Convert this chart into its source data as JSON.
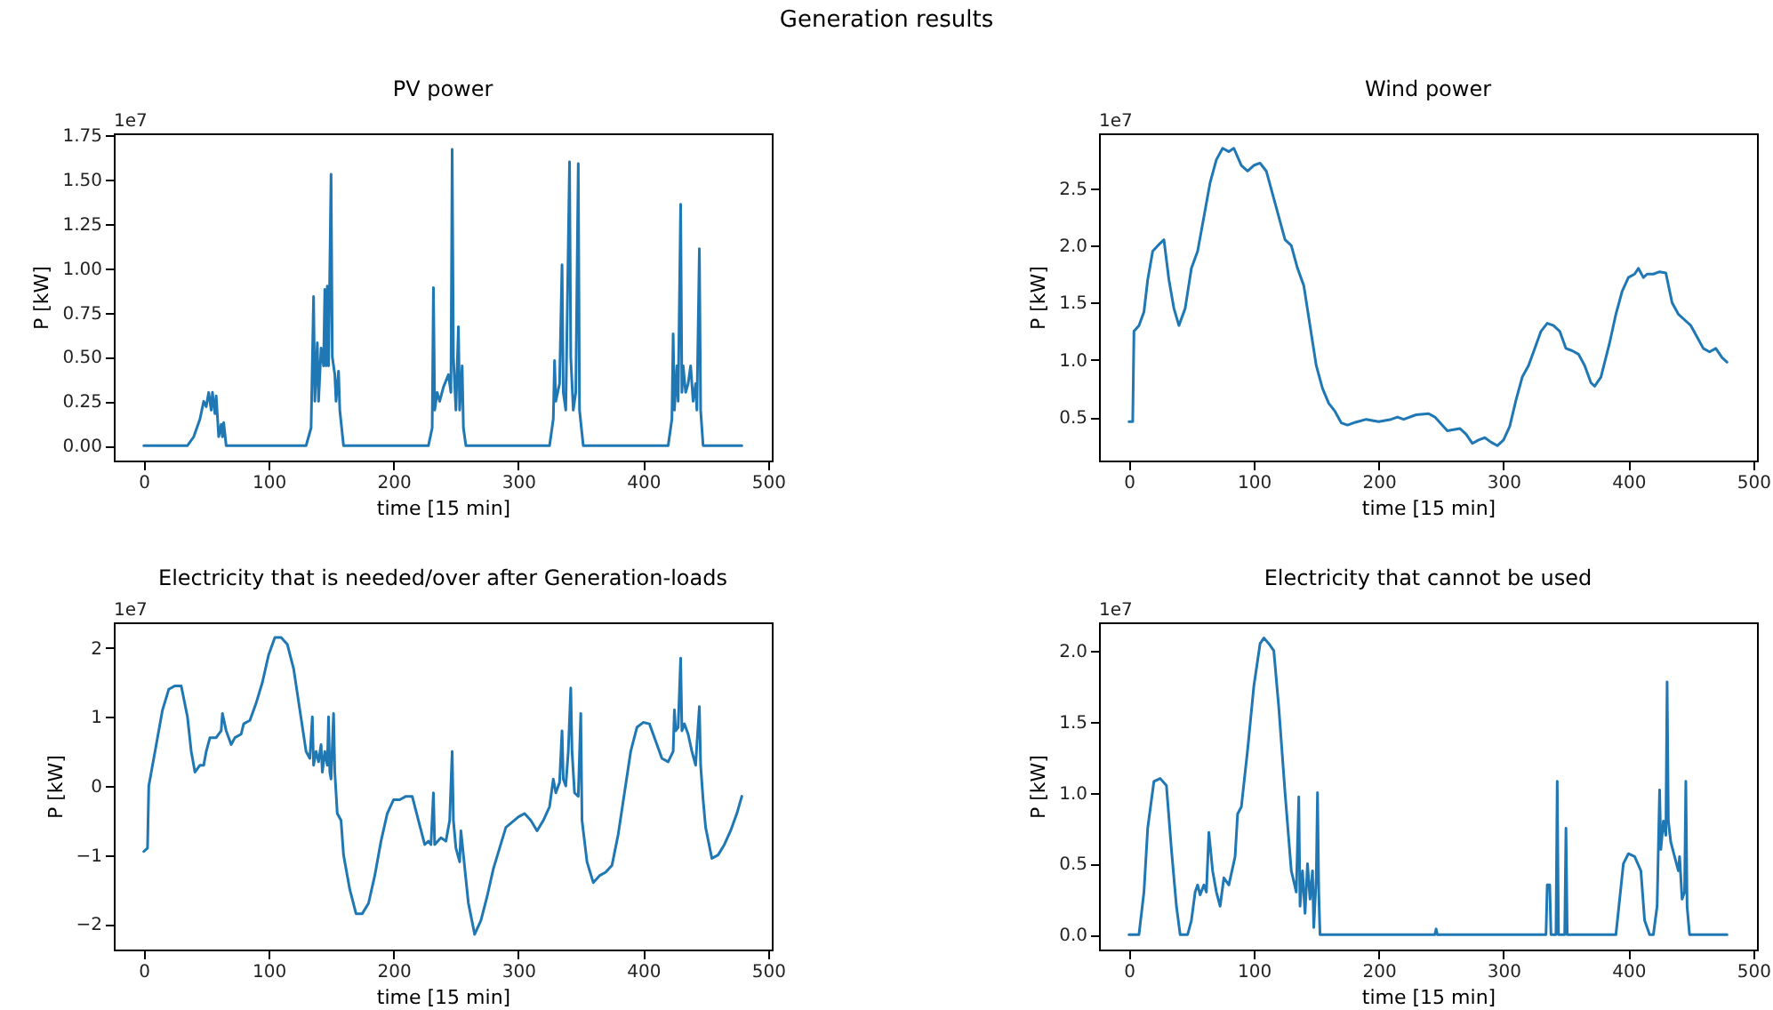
{
  "chart_data": [
    {
      "type": "other",
      "title": "Generation results"
    },
    {
      "type": "line",
      "title": "PV power",
      "xlabel": "time [15 min]",
      "ylabel": "P [kW]",
      "annotations": [
        "1e7"
      ],
      "grid": false,
      "marker": "none",
      "line_style": "solid",
      "xlim": [
        -24,
        503
      ],
      "xticks": [
        0,
        100,
        200,
        300,
        400,
        500
      ],
      "ylim": [
        -0.084,
        1.76
      ],
      "yticks": [
        {
          "value": 0,
          "label": "0.00"
        },
        0.25,
        {
          "value": 0.5,
          "label": "0.50"
        },
        0.75,
        {
          "value": 1,
          "label": "1.00"
        },
        1.25,
        {
          "value": 1.5,
          "label": "1.50"
        },
        1.75
      ],
      "x": [
        0,
        35,
        40,
        45,
        48,
        50,
        52,
        54,
        55,
        57,
        58,
        60,
        62,
        63,
        64,
        66,
        130,
        134,
        136,
        137,
        139,
        140,
        142,
        144,
        145,
        146,
        147,
        148,
        150,
        151,
        153,
        154,
        156,
        157,
        160,
        228,
        231,
        232,
        233,
        235,
        237,
        240,
        244,
        246,
        247,
        248,
        250,
        252,
        253,
        255,
        256,
        258,
        325,
        328,
        329,
        330,
        333,
        335,
        336,
        338,
        341,
        342,
        344,
        346,
        348,
        349,
        352,
        420,
        423,
        424,
        425,
        427,
        428,
        430,
        431,
        432,
        434,
        436,
        438,
        440,
        442,
        443,
        445,
        446,
        448,
        479
      ],
      "series": [
        {
          "color": "#1f77b4",
          "values": [
            0,
            0,
            0.05,
            0.15,
            0.25,
            0.22,
            0.3,
            0.2,
            0.3,
            0.18,
            0.28,
            0.05,
            0.12,
            0.05,
            0.13,
            0,
            0,
            0.1,
            0.84,
            0.25,
            0.58,
            0.25,
            0.55,
            0.45,
            0.88,
            0.45,
            0.9,
            0.45,
            1.53,
            0.5,
            0.4,
            0.25,
            0.42,
            0.2,
            0,
            0,
            0.1,
            0.89,
            0.2,
            0.3,
            0.25,
            0.33,
            0.4,
            0.3,
            1.67,
            0.5,
            0.2,
            0.67,
            0.2,
            0.45,
            0.1,
            0,
            0,
            0.15,
            0.48,
            0.25,
            0.35,
            1.02,
            0.3,
            0.2,
            1.6,
            0.5,
            0.2,
            0.3,
            1.59,
            0.2,
            0,
            0,
            0.15,
            0.63,
            0.2,
            0.45,
            0.25,
            1.36,
            0.3,
            0.45,
            0.3,
            0.35,
            0.45,
            0.25,
            0.35,
            0.2,
            1.11,
            0.2,
            0,
            0
          ]
        }
      ]
    },
    {
      "type": "line",
      "title": "Wind power",
      "xlabel": "time [15 min]",
      "ylabel": "P [kW]",
      "annotations": [
        "1e7"
      ],
      "grid": false,
      "marker": "none",
      "line_style": "solid",
      "xlim": [
        -24,
        503
      ],
      "xticks": [
        0,
        100,
        200,
        300,
        400,
        500
      ],
      "ylim": [
        0.12,
        2.98
      ],
      "yticks": [
        0.5,
        {
          "value": 1,
          "label": "1.0"
        },
        1.5,
        {
          "value": 2,
          "label": "2.0"
        },
        2.5
      ],
      "x": [
        0,
        3,
        4,
        8,
        12,
        15,
        19,
        25,
        28,
        32,
        36,
        40,
        45,
        50,
        55,
        60,
        65,
        70,
        75,
        80,
        84,
        90,
        95,
        100,
        105,
        110,
        115,
        120,
        125,
        130,
        135,
        140,
        145,
        150,
        155,
        160,
        165,
        170,
        175,
        180,
        190,
        200,
        210,
        215,
        220,
        230,
        240,
        245,
        255,
        265,
        270,
        275,
        280,
        285,
        290,
        295,
        300,
        305,
        310,
        315,
        320,
        325,
        330,
        335,
        340,
        345,
        350,
        355,
        360,
        365,
        370,
        373,
        378,
        385,
        390,
        395,
        400,
        405,
        408,
        412,
        415,
        420,
        425,
        430,
        435,
        440,
        445,
        450,
        455,
        460,
        465,
        470,
        475,
        479
      ],
      "series": [
        {
          "color": "#1f77b4",
          "values": [
            0.46,
            0.46,
            1.25,
            1.3,
            1.42,
            1.7,
            1.95,
            2.02,
            2.05,
            1.7,
            1.45,
            1.3,
            1.45,
            1.8,
            1.95,
            2.25,
            2.55,
            2.75,
            2.85,
            2.82,
            2.85,
            2.7,
            2.65,
            2.7,
            2.72,
            2.65,
            2.45,
            2.25,
            2.05,
            2.0,
            1.8,
            1.65,
            1.3,
            0.95,
            0.75,
            0.62,
            0.55,
            0.45,
            0.43,
            0.45,
            0.48,
            0.46,
            0.48,
            0.5,
            0.48,
            0.52,
            0.53,
            0.5,
            0.38,
            0.4,
            0.35,
            0.27,
            0.3,
            0.32,
            0.28,
            0.25,
            0.3,
            0.42,
            0.65,
            0.85,
            0.95,
            1.1,
            1.25,
            1.32,
            1.3,
            1.25,
            1.1,
            1.08,
            1.05,
            0.95,
            0.8,
            0.77,
            0.85,
            1.15,
            1.4,
            1.6,
            1.72,
            1.75,
            1.8,
            1.72,
            1.75,
            1.75,
            1.77,
            1.76,
            1.5,
            1.4,
            1.35,
            1.3,
            1.2,
            1.1,
            1.07,
            1.1,
            1.02,
            0.98
          ]
        }
      ]
    },
    {
      "type": "line",
      "title": "Electricity that is needed/over after Generation-loads",
      "xlabel": "time [15 min]",
      "ylabel": "P [kW]",
      "annotations": [
        "1e7"
      ],
      "grid": false,
      "marker": "none",
      "line_style": "solid",
      "xlim": [
        -24,
        503
      ],
      "xticks": [
        0,
        100,
        200,
        300,
        400,
        500
      ],
      "ylim": [
        -2.37,
        2.37
      ],
      "yticks": [
        {
          "value": -2,
          "label": "−2"
        },
        {
          "value": -1,
          "label": "−1"
        },
        0,
        1,
        2
      ],
      "x": [
        0,
        3,
        4,
        6,
        10,
        15,
        20,
        25,
        30,
        35,
        38,
        41,
        45,
        48,
        50,
        53,
        58,
        62,
        63,
        66,
        70,
        73,
        78,
        80,
        85,
        90,
        95,
        100,
        105,
        110,
        115,
        120,
        125,
        130,
        133,
        135,
        136,
        138,
        140,
        142,
        143,
        145,
        147,
        148,
        149,
        150,
        152,
        153,
        155,
        158,
        160,
        165,
        170,
        175,
        180,
        185,
        190,
        195,
        200,
        205,
        210,
        215,
        220,
        225,
        228,
        230,
        232,
        233,
        238,
        242,
        245,
        247,
        248,
        250,
        253,
        254,
        256,
        260,
        265,
        270,
        275,
        280,
        285,
        290,
        300,
        305,
        310,
        315,
        320,
        325,
        328,
        330,
        333,
        335,
        336,
        338,
        340,
        342,
        343,
        345,
        348,
        350,
        351,
        355,
        360,
        365,
        370,
        375,
        380,
        385,
        390,
        395,
        400,
        405,
        410,
        415,
        420,
        424,
        425,
        426,
        428,
        430,
        431,
        433,
        436,
        439,
        442,
        443,
        445,
        446,
        448,
        450,
        455,
        460,
        465,
        470,
        475,
        479
      ],
      "series": [
        {
          "color": "#1f77b4",
          "values": [
            -0.95,
            -0.9,
            0,
            0.2,
            0.6,
            1.1,
            1.4,
            1.45,
            1.45,
            1.0,
            0.5,
            0.2,
            0.3,
            0.3,
            0.5,
            0.7,
            0.7,
            0.8,
            1.05,
            0.8,
            0.6,
            0.7,
            0.75,
            0.9,
            0.95,
            1.2,
            1.5,
            1.9,
            2.15,
            2.15,
            2.05,
            1.7,
            1.1,
            0.5,
            0.4,
            1.0,
            0.3,
            0.5,
            0.35,
            0.6,
            0.2,
            0.5,
            0.3,
            1.0,
            0.2,
            0.1,
            1.05,
            0.2,
            -0.4,
            -0.5,
            -1.0,
            -1.5,
            -1.85,
            -1.85,
            -1.7,
            -1.3,
            -0.8,
            -0.4,
            -0.2,
            -0.2,
            -0.15,
            -0.15,
            -0.5,
            -0.85,
            -0.8,
            -0.85,
            -0.1,
            -0.85,
            -0.75,
            -0.8,
            -0.5,
            0.5,
            -0.5,
            -0.9,
            -1.1,
            -0.65,
            -1.0,
            -1.7,
            -2.15,
            -1.95,
            -1.6,
            -1.2,
            -0.9,
            -0.6,
            -0.45,
            -0.4,
            -0.5,
            -0.65,
            -0.5,
            -0.3,
            0.1,
            -0.1,
            0.05,
            0.8,
            0.1,
            0,
            0.5,
            1.42,
            0.5,
            -0.1,
            -0.15,
            1.05,
            -0.5,
            -1.1,
            -1.4,
            -1.3,
            -1.25,
            -1.15,
            -0.7,
            -0.1,
            0.5,
            0.85,
            0.92,
            0.9,
            0.65,
            0.4,
            0.35,
            0.5,
            1.1,
            0.8,
            0.85,
            1.85,
            0.8,
            0.9,
            0.75,
            0.5,
            0.3,
            0.6,
            1.15,
            0.3,
            -0.2,
            -0.6,
            -1.05,
            -1.0,
            -0.85,
            -0.65,
            -0.4,
            -0.15
          ]
        }
      ]
    },
    {
      "type": "line",
      "title": "Electricity that cannot be used",
      "xlabel": "time [15 min]",
      "ylabel": "P [kW]",
      "annotations": [
        "1e7"
      ],
      "grid": false,
      "marker": "none",
      "line_style": "solid",
      "xlim": [
        -24,
        503
      ],
      "xticks": [
        0,
        100,
        200,
        300,
        400,
        500
      ],
      "ylim": [
        -0.105,
        2.2
      ],
      "yticks": [
        {
          "value": 0,
          "label": "0.0"
        },
        0.5,
        {
          "value": 1,
          "label": "1.0"
        },
        1.5,
        {
          "value": 2,
          "label": "2.0"
        }
      ],
      "x": [
        0,
        8,
        12,
        15,
        20,
        25,
        30,
        34,
        38,
        41,
        47,
        50,
        53,
        55,
        57,
        60,
        62,
        64,
        67,
        70,
        73,
        76,
        80,
        85,
        87,
        90,
        95,
        100,
        105,
        108,
        112,
        116,
        120,
        125,
        130,
        134,
        136,
        137,
        139,
        141,
        143,
        145,
        147,
        148,
        150,
        151,
        152,
        153,
        245,
        246,
        247,
        334,
        335,
        337,
        338,
        342,
        343,
        344,
        349,
        350,
        351,
        390,
        393,
        396,
        400,
        405,
        410,
        413,
        417,
        420,
        423,
        425,
        426,
        428,
        430,
        431,
        432,
        434,
        437,
        440,
        441,
        443,
        445,
        446,
        447,
        449,
        479
      ],
      "series": [
        {
          "color": "#1f77b4",
          "values": [
            0,
            0,
            0.3,
            0.75,
            1.08,
            1.1,
            1.05,
            0.6,
            0.2,
            0,
            0,
            0.1,
            0.3,
            0.35,
            0.28,
            0.35,
            0.3,
            0.72,
            0.45,
            0.3,
            0.2,
            0.4,
            0.35,
            0.55,
            0.85,
            0.9,
            1.3,
            1.75,
            2.05,
            2.09,
            2.05,
            2.0,
            1.6,
            1.0,
            0.45,
            0.3,
            0.97,
            0.2,
            0.45,
            0.15,
            0.5,
            0.25,
            0.45,
            0.05,
            0.4,
            1.0,
            0.3,
            0,
            0,
            0.04,
            0,
            0,
            0.35,
            0.35,
            0,
            0,
            1.08,
            0,
            0,
            0.75,
            0,
            0,
            0.25,
            0.5,
            0.57,
            0.55,
            0.45,
            0.1,
            0,
            0,
            0.2,
            1.02,
            0.6,
            0.8,
            0.7,
            1.78,
            0.8,
            0.65,
            0.55,
            0.45,
            0.55,
            0.25,
            0.3,
            1.08,
            0.2,
            0,
            0
          ]
        }
      ]
    }
  ]
}
